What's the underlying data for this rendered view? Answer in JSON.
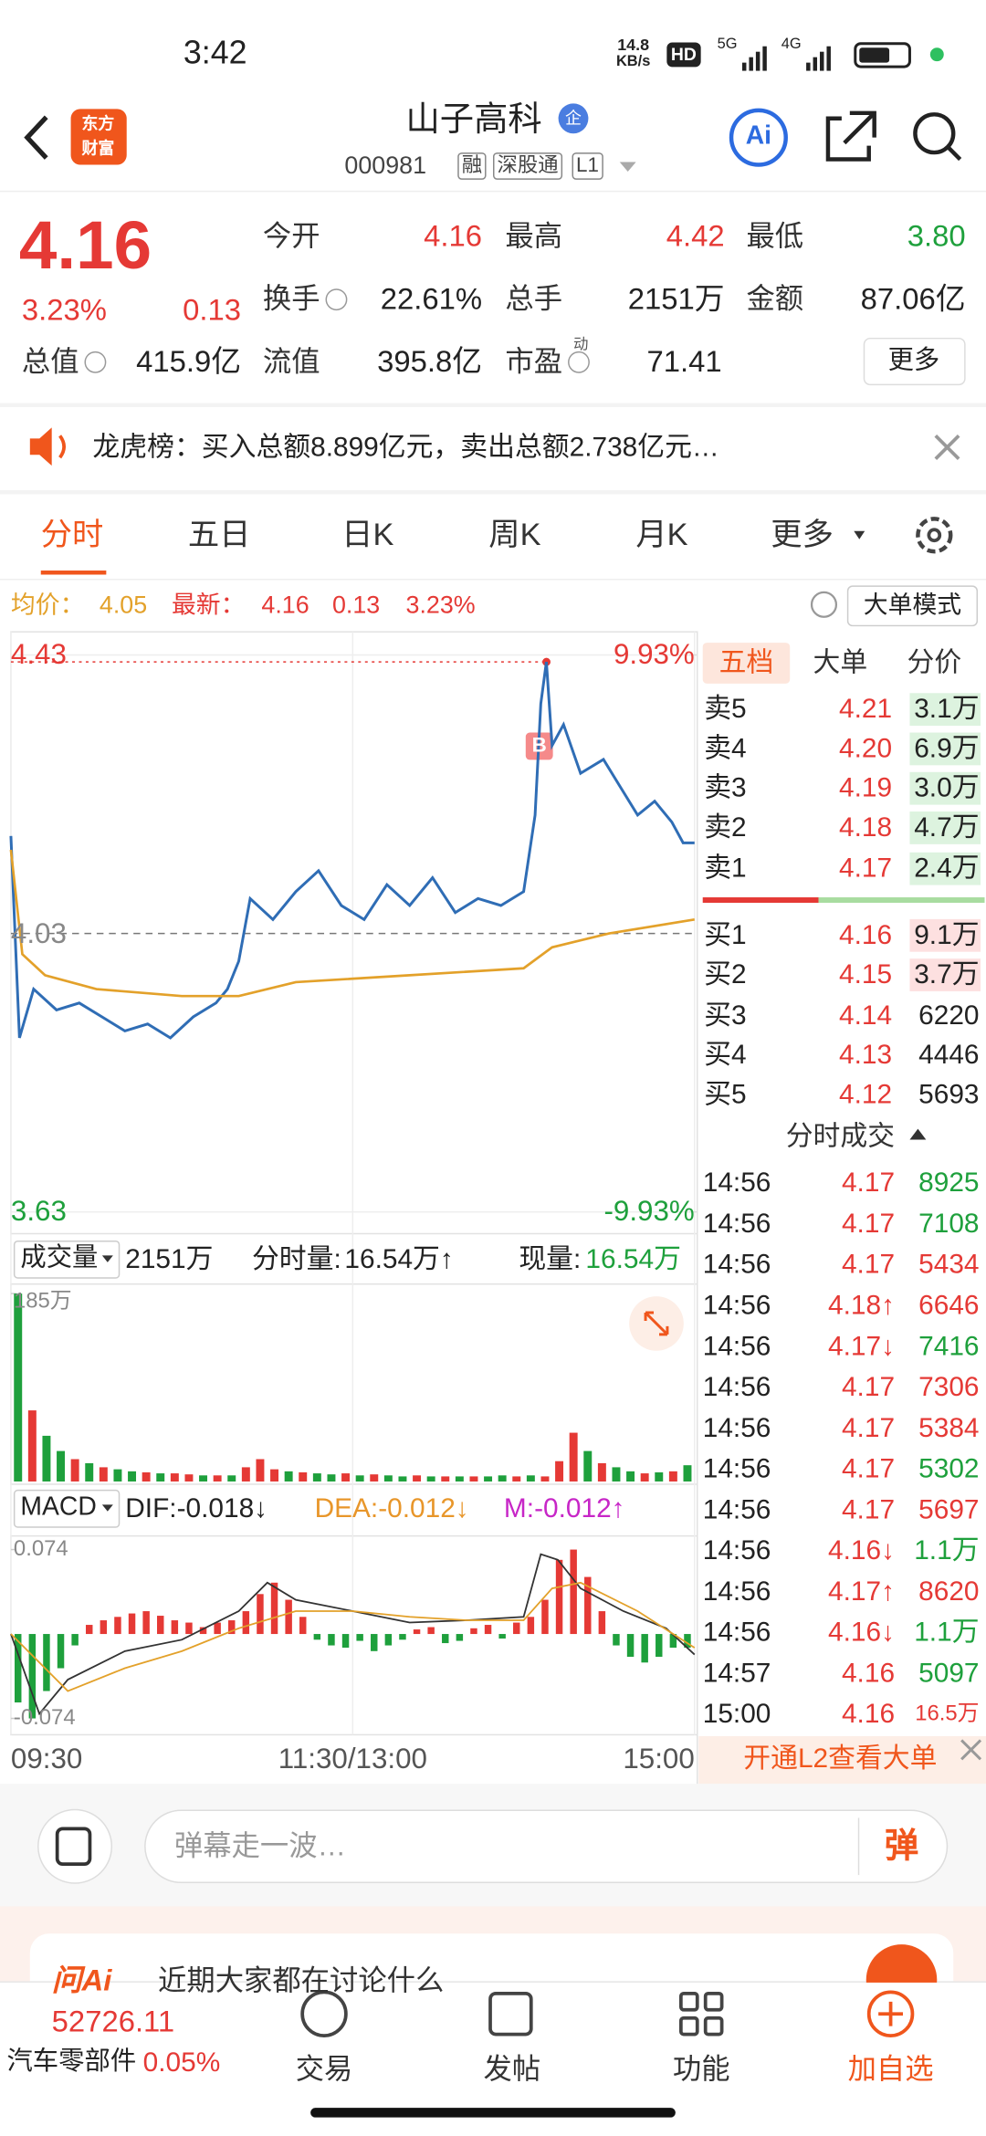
{
  "status_bar": {
    "time": "3:42",
    "net_speed": "14.8",
    "net_unit": "KB/s",
    "hd": "HD",
    "sig1": "5G",
    "sig2": "4G"
  },
  "header": {
    "logo": [
      "东方",
      "财富"
    ],
    "title": "山子高科",
    "badge": "企",
    "code": "000981",
    "tags": [
      "融",
      "深股通",
      "L1"
    ],
    "ai": "Ai"
  },
  "quote": {
    "price": "4.16",
    "change_pct": "3.23%",
    "change": "0.13",
    "fields": [
      [
        {
          "label": "今开",
          "value": "4.16",
          "color": "#e53935"
        },
        {
          "label": "最高",
          "value": "4.42",
          "color": "#e53935"
        },
        {
          "label": "最低",
          "value": "3.80",
          "color": "#1ea03c"
        }
      ],
      [
        {
          "label": "换手",
          "value": "22.61%",
          "color": "#222"
        },
        {
          "label": "总手",
          "value": "2151万",
          "color": "#222"
        },
        {
          "label": "金额",
          "value": "87.06亿",
          "color": "#222"
        }
      ],
      [
        {
          "label": "总值",
          "value": "415.9亿",
          "color": "#222"
        },
        {
          "label": "流值",
          "value": "395.8亿",
          "color": "#222"
        },
        {
          "label": "市盈",
          "sup": "动",
          "value": "71.41",
          "color": "#222"
        }
      ]
    ],
    "more": "更多"
  },
  "notice": {
    "text": "龙虎榜：买入总额8.899亿元，卖出总额2.738亿元…"
  },
  "tabs": [
    "分时",
    "五日",
    "日K",
    "周K",
    "月K",
    "更多"
  ],
  "summary": {
    "avg_label": "均价：",
    "avg": "4.05",
    "last_label": "最新：",
    "last": "4.16",
    "change": "0.13",
    "pct": "3.23%",
    "mode": "大单模式"
  },
  "chart_data": [
    {
      "type": "line",
      "xlim": [
        0,
        240
      ],
      "xticks": [
        {
          "value": 0,
          "label": "09:30"
        },
        {
          "value": 120,
          "label": "11:30/13:00"
        },
        {
          "value": 240,
          "label": "15:00"
        }
      ],
      "ylim": [
        3.63,
        4.43
      ],
      "yticks": [
        3.63,
        4.03,
        4.43
      ],
      "y2lim": [
        -9.93,
        9.93
      ],
      "y2ticks": [
        {
          "value": -9.93,
          "label": "-9.93%"
        },
        {
          "value": 9.93,
          "label": "9.93%"
        }
      ],
      "buy_marker": "B",
      "series": [
        {
          "color": "#2f6db5",
          "x": [
            0,
            3,
            8,
            16,
            24,
            32,
            40,
            48,
            56,
            64,
            72,
            76,
            80,
            84,
            92,
            100,
            108,
            116,
            124,
            132,
            140,
            148,
            156,
            164,
            172,
            180,
            184,
            186,
            188,
            190,
            194,
            200,
            208,
            214,
            220,
            226,
            232,
            236,
            240
          ],
          "values": [
            4.17,
            3.88,
            3.95,
            3.92,
            3.93,
            3.91,
            3.89,
            3.9,
            3.88,
            3.91,
            3.93,
            3.95,
            3.99,
            4.08,
            4.05,
            4.09,
            4.12,
            4.07,
            4.05,
            4.1,
            4.07,
            4.11,
            4.06,
            4.08,
            4.07,
            4.09,
            4.2,
            4.36,
            4.42,
            4.3,
            4.33,
            4.26,
            4.28,
            4.24,
            4.2,
            4.22,
            4.19,
            4.16,
            4.16
          ]
        },
        {
          "color": "#e3a12a",
          "x": [
            0,
            4,
            12,
            30,
            60,
            80,
            100,
            140,
            180,
            190,
            210,
            240
          ],
          "values": [
            4.15,
            4.0,
            3.97,
            3.95,
            3.94,
            3.94,
            3.96,
            3.97,
            3.98,
            4.01,
            4.03,
            4.05
          ]
        }
      ]
    },
    {
      "type": "bar",
      "title": "成交量",
      "total": "2151万",
      "period_label": "分时量:",
      "period_value": "16.54万↑",
      "current_label": "现量:",
      "current_value": "16.54万",
      "ylim": [
        0,
        185
      ],
      "yticks": [
        {
          "value": 185,
          "label": "185万"
        }
      ],
      "values": [
        185,
        70,
        45,
        30,
        22,
        18,
        14,
        12,
        10,
        9,
        8,
        8,
        7,
        6,
        6,
        6,
        14,
        22,
        12,
        10,
        9,
        8,
        7,
        8,
        6,
        7,
        6,
        5,
        6,
        5,
        5,
        5,
        5,
        5,
        6,
        5,
        6,
        5,
        20,
        48,
        30,
        18,
        14,
        10,
        8,
        9,
        10,
        16
      ],
      "colors": [
        "#1ea03c",
        "#e53935",
        "#1ea03c",
        "#1ea03c",
        "#e53935",
        "#1ea03c",
        "#e53935",
        "#1ea03c",
        "#1ea03c",
        "#e53935",
        "#1ea03c",
        "#e53935",
        "#e53935",
        "#1ea03c",
        "#e53935",
        "#1ea03c",
        "#e53935",
        "#e53935",
        "#e53935",
        "#1ea03c",
        "#e53935",
        "#1ea03c",
        "#1ea03c",
        "#e53935",
        "#1ea03c",
        "#e53935",
        "#1ea03c",
        "#1ea03c",
        "#e53935",
        "#1ea03c",
        "#e53935",
        "#1ea03c",
        "#e53935",
        "#1ea03c",
        "#1ea03c",
        "#e53935",
        "#1ea03c",
        "#e53935",
        "#e53935",
        "#e53935",
        "#1ea03c",
        "#e53935",
        "#1ea03c",
        "#1ea03c",
        "#e53935",
        "#1ea03c",
        "#e53935",
        "#1ea03c"
      ]
    },
    {
      "type": "macd",
      "title": "MACD",
      "dif": "DIF:-0.018↓",
      "dea": "DEA:-0.012↓",
      "m": "M:-0.012↑",
      "ylim": [
        -0.074,
        0.074
      ],
      "yticks": [
        -0.074,
        0.074
      ],
      "up_color": "#e53935",
      "down_color": "#1ea03c",
      "values": [
        -0.06,
        -0.074,
        -0.05,
        -0.03,
        -0.01,
        0.008,
        0.012,
        0.015,
        0.018,
        0.02,
        0.016,
        0.012,
        0.01,
        0.006,
        0.01,
        0.012,
        0.02,
        0.035,
        0.045,
        0.03,
        0.015,
        -0.005,
        -0.01,
        -0.012,
        -0.006,
        -0.015,
        -0.01,
        -0.005,
        0.004,
        0.006,
        -0.008,
        -0.006,
        0.005,
        0.008,
        -0.004,
        0.01,
        0.015,
        0.03,
        0.065,
        0.074,
        0.05,
        0.02,
        -0.01,
        -0.02,
        -0.025,
        -0.02,
        -0.012,
        -0.012
      ],
      "series": [
        {
          "color": "#333333",
          "x": [
            0,
            10,
            20,
            40,
            60,
            80,
            90,
            100,
            120,
            140,
            160,
            180,
            186,
            192,
            200,
            215,
            230,
            240
          ],
          "values": [
            0,
            -0.07,
            -0.04,
            -0.015,
            -0.005,
            0.02,
            0.045,
            0.03,
            0.02,
            0.01,
            0.012,
            0.015,
            0.07,
            0.065,
            0.04,
            0.02,
            0.005,
            -0.018
          ]
        },
        {
          "color": "#e3a12a",
          "x": [
            0,
            20,
            40,
            60,
            80,
            100,
            120,
            140,
            160,
            180,
            190,
            200,
            220,
            240
          ],
          "values": [
            0,
            -0.05,
            -0.03,
            -0.015,
            0.005,
            0.02,
            0.02,
            0.015,
            0.012,
            0.012,
            0.04,
            0.045,
            0.02,
            -0.012
          ]
        }
      ]
    }
  ],
  "order_book": {
    "tabs": [
      "五档",
      "大单",
      "分价"
    ],
    "sell": [
      [
        "卖5",
        "4.21",
        "3.1万"
      ],
      [
        "卖4",
        "4.20",
        "6.9万"
      ],
      [
        "卖3",
        "4.19",
        "3.0万"
      ],
      [
        "卖2",
        "4.18",
        "4.7万"
      ],
      [
        "卖1",
        "4.17",
        "2.4万"
      ]
    ],
    "buy": [
      [
        "买1",
        "4.16",
        "9.1万"
      ],
      [
        "买2",
        "4.15",
        "3.7万"
      ],
      [
        "买3",
        "4.14",
        "6220"
      ],
      [
        "买4",
        "4.13",
        "4446"
      ],
      [
        "买5",
        "4.12",
        "5693"
      ]
    ]
  },
  "trades": {
    "title": "分时成交",
    "rows": [
      {
        "time": "14:56",
        "price": "4.17",
        "volume": "8925",
        "color": "#1ea03c"
      },
      {
        "time": "14:56",
        "price": "4.17",
        "volume": "7108",
        "color": "#1ea03c"
      },
      {
        "time": "14:56",
        "price": "4.17",
        "volume": "5434",
        "color": "#e53935"
      },
      {
        "time": "14:56",
        "price": "4.18↑",
        "volume": "6646",
        "color": "#e53935"
      },
      {
        "time": "14:56",
        "price": "4.17↓",
        "volume": "7416",
        "color": "#1ea03c"
      },
      {
        "time": "14:56",
        "price": "4.17",
        "volume": "7306",
        "color": "#e53935"
      },
      {
        "time": "14:56",
        "price": "4.17",
        "volume": "5384",
        "color": "#e53935"
      },
      {
        "time": "14:56",
        "price": "4.17",
        "volume": "5302",
        "color": "#1ea03c"
      },
      {
        "time": "14:56",
        "price": "4.17",
        "volume": "5697",
        "color": "#e53935"
      },
      {
        "time": "14:56",
        "price": "4.16↓",
        "volume": "1.1万",
        "color": "#1ea03c"
      },
      {
        "time": "14:56",
        "price": "4.17↑",
        "volume": "8620",
        "color": "#e53935"
      },
      {
        "time": "14:56",
        "price": "4.16↓",
        "volume": "1.1万",
        "color": "#1ea03c"
      },
      {
        "time": "14:57",
        "price": "4.16",
        "volume": "5097",
        "color": "#1ea03c"
      },
      {
        "time": "15:00",
        "price": "4.16",
        "volume": "16.5万",
        "color": "#e53935"
      }
    ],
    "l2": "开通L2查看大单"
  },
  "comment": {
    "placeholder": "弹幕走一波…",
    "button": "弹"
  },
  "card": {
    "logo": "问Ai",
    "text": "近期大家都在讨论什么"
  },
  "bottom_nav": {
    "index": "52726.11",
    "sector": "汽车零部件",
    "sector_change": "0.05%",
    "items": [
      "交易",
      "发帖",
      "功能",
      "加自选"
    ]
  }
}
